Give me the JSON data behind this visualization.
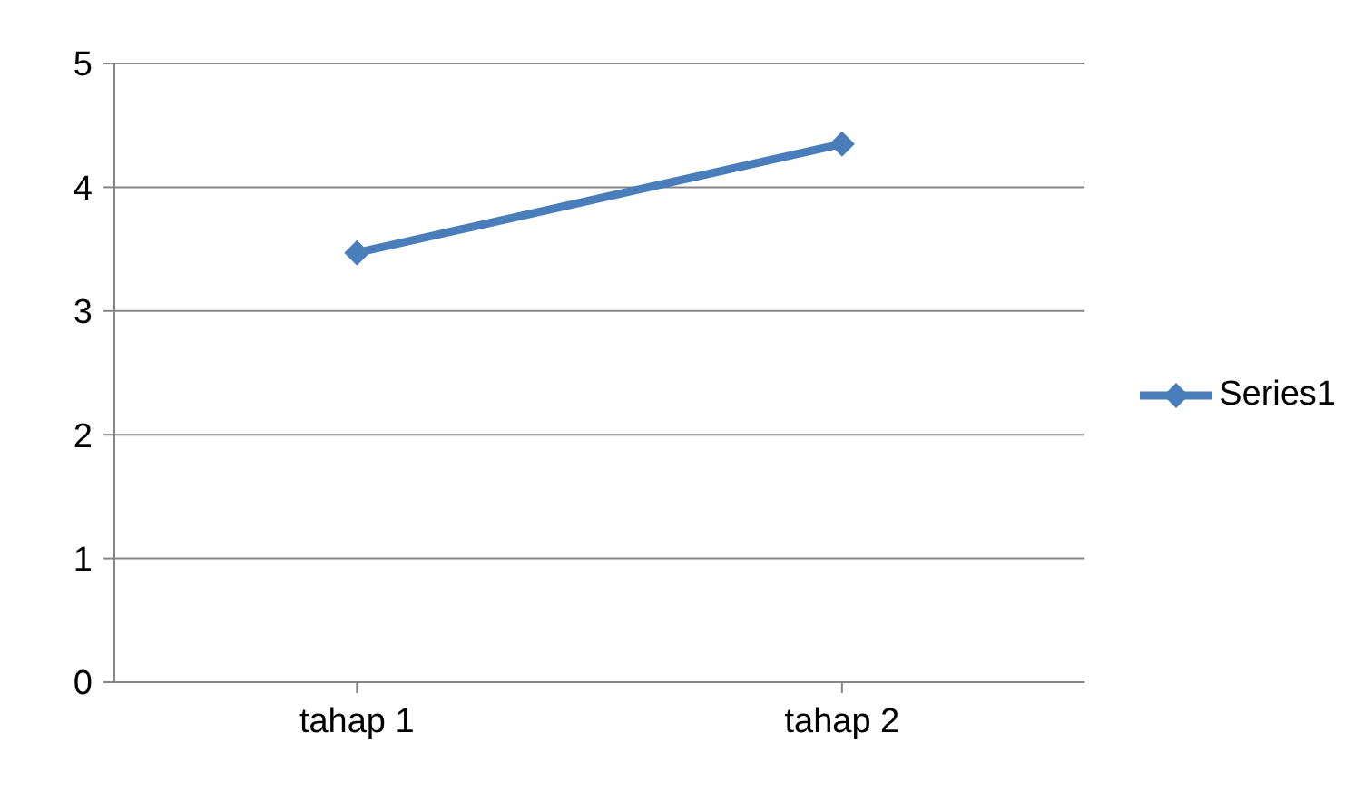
{
  "chart_data": {
    "type": "line",
    "categories": [
      "tahap 1",
      "tahap 2"
    ],
    "series": [
      {
        "name": "Series1",
        "color": "#4a7ebb",
        "values": [
          3.47,
          4.35
        ]
      }
    ],
    "ylim": [
      0,
      5
    ],
    "yticks": [
      0,
      1,
      2,
      3,
      4,
      5
    ],
    "grid": "y",
    "legend": "right",
    "marker": "diamond",
    "line_style": "solid"
  }
}
